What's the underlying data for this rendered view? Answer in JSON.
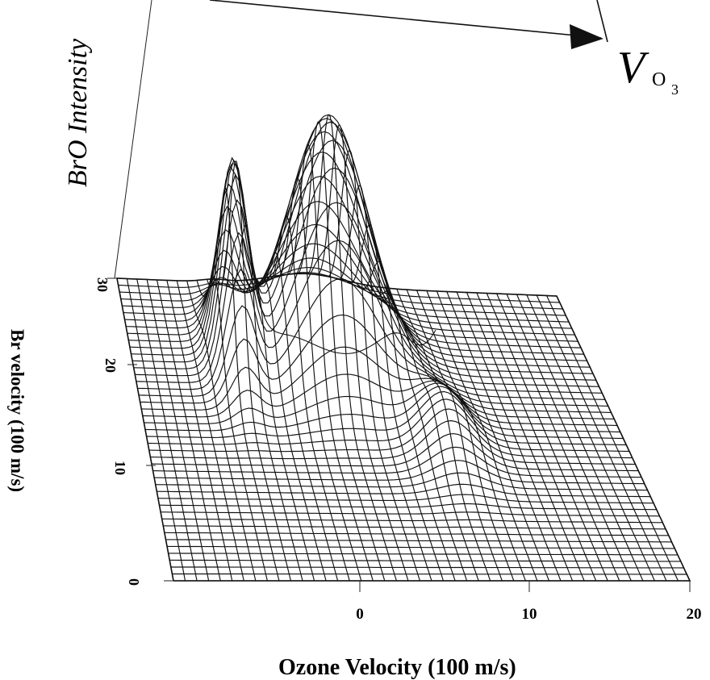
{
  "chart_data": {
    "type": "surface",
    "title": "",
    "xlabel": "Ozone Velocity (100 m/s)",
    "ylabel": "Br velocity (100 m/s)",
    "zlabel": "BrO Intensity",
    "x_ticks": [
      "0",
      "10",
      "20"
    ],
    "y_ticks": [
      "0",
      "10",
      "20",
      "30"
    ],
    "xlim": [
      -10,
      20
    ],
    "ylim": [
      0,
      30
    ],
    "annotation": {
      "symbol": "V",
      "subscript": "O",
      "subscript2": "3"
    },
    "features": [
      {
        "name": "",
        "x_peak": -4,
        "y_peak": 22,
        "relative_height": 0.85
      },
      {
        "name": "",
        "x_peak": 4,
        "y_peak": 23,
        "relative_height": 1.0
      }
    ]
  },
  "colors": {
    "ink": "#111111",
    "background": "#ffffff"
  }
}
